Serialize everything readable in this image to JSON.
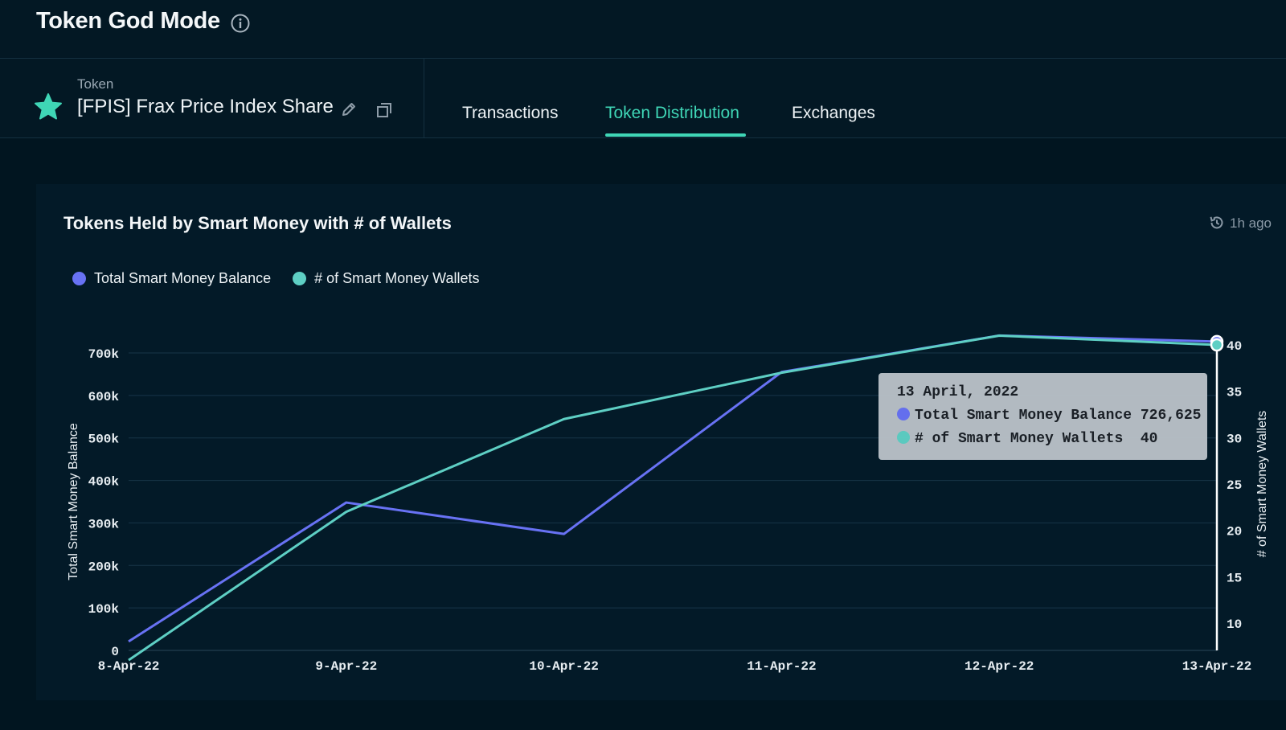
{
  "header": {
    "title": "Token God Mode",
    "info_icon": "info-icon"
  },
  "token": {
    "label": "Token",
    "name": "[FPIS] Frax Price Index Share",
    "icons": [
      "star-icon",
      "pencil-icon",
      "copy-icon"
    ]
  },
  "tabs": [
    {
      "label": "Transactions",
      "active": false
    },
    {
      "label": "Token Distribution",
      "active": true
    },
    {
      "label": "Exchanges",
      "active": false
    }
  ],
  "panel": {
    "title": "Tokens Held by Smart Money with # of Wallets",
    "updated": "1h ago",
    "refresh_icon": "history-icon"
  },
  "colors": {
    "accent": "#3fd6b6",
    "balance": "#6872f4",
    "wallets": "#5ecfc4",
    "background": "#011520"
  },
  "tooltip": {
    "date": "13 April, 2022",
    "rows": [
      {
        "label": "Total Smart Money Balance",
        "value": "726,625"
      },
      {
        "label": "# of Smart Money Wallets",
        "value": "40"
      }
    ]
  },
  "chart_data": {
    "type": "line",
    "title": "Tokens Held by Smart Money with # of Wallets",
    "categories": [
      "8-Apr-22",
      "9-Apr-22",
      "10-Apr-22",
      "11-Apr-22",
      "12-Apr-22",
      "13-Apr-22"
    ],
    "series": [
      {
        "name": "Total Smart Money Balance",
        "axis": "left",
        "values": [
          21000,
          348000,
          274000,
          655000,
          741000,
          726625
        ]
      },
      {
        "name": "# of Smart Money Wallets",
        "axis": "right",
        "values": [
          6,
          22,
          32,
          37,
          41,
          40
        ]
      }
    ],
    "y_left": {
      "label": "Total Smart Money Balance",
      "ticks": [
        "0",
        "100k",
        "200k",
        "300k",
        "400k",
        "500k",
        "600k",
        "700k"
      ],
      "range": [
        0,
        700000
      ]
    },
    "y_right": {
      "label": "# of Smart Money Wallets",
      "ticks": [
        "10",
        "15",
        "20",
        "25",
        "30",
        "35",
        "40"
      ],
      "range": [
        10,
        40
      ]
    },
    "grid": true,
    "legend": "top-left",
    "highlighted_category": "13-Apr-22"
  }
}
